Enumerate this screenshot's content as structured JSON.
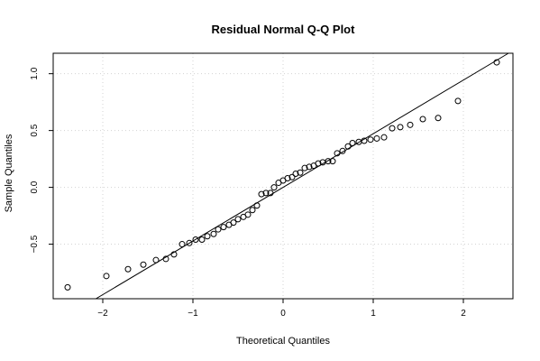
{
  "chart_data": {
    "type": "scatter",
    "title": "Residual Normal Q-Q Plot",
    "xlabel": "Theoretical Quantiles",
    "ylabel": "Sample Quantiles",
    "xlim": [
      -2.55,
      2.55
    ],
    "ylim": [
      -0.98,
      1.18
    ],
    "x_ticks": [
      -2,
      -1,
      0,
      1,
      2
    ],
    "x_tick_labels": [
      "−2",
      "−1",
      "0",
      "1",
      "2"
    ],
    "y_ticks": [
      -0.5,
      0.0,
      0.5,
      1.0
    ],
    "y_tick_labels": [
      "−0.5",
      "0.0",
      "0.5",
      "1.0"
    ],
    "grid": true,
    "reference_line": {
      "intercept": 0.0,
      "slope": 0.472
    },
    "points": [
      {
        "x": -2.39,
        "y": -0.88
      },
      {
        "x": -1.96,
        "y": -0.78
      },
      {
        "x": -1.72,
        "y": -0.72
      },
      {
        "x": -1.55,
        "y": -0.68
      },
      {
        "x": -1.41,
        "y": -0.64
      },
      {
        "x": -1.3,
        "y": -0.63
      },
      {
        "x": -1.21,
        "y": -0.59
      },
      {
        "x": -1.12,
        "y": -0.5
      },
      {
        "x": -1.04,
        "y": -0.49
      },
      {
        "x": -0.97,
        "y": -0.46
      },
      {
        "x": -0.9,
        "y": -0.46
      },
      {
        "x": -0.84,
        "y": -0.43
      },
      {
        "x": -0.77,
        "y": -0.41
      },
      {
        "x": -0.72,
        "y": -0.37
      },
      {
        "x": -0.66,
        "y": -0.35
      },
      {
        "x": -0.6,
        "y": -0.33
      },
      {
        "x": -0.55,
        "y": -0.31
      },
      {
        "x": -0.5,
        "y": -0.28
      },
      {
        "x": -0.44,
        "y": -0.26
      },
      {
        "x": -0.39,
        "y": -0.24
      },
      {
        "x": -0.34,
        "y": -0.2
      },
      {
        "x": -0.29,
        "y": -0.16
      },
      {
        "x": -0.24,
        "y": -0.06
      },
      {
        "x": -0.19,
        "y": -0.05
      },
      {
        "x": -0.14,
        "y": -0.05
      },
      {
        "x": -0.1,
        "y": 0.0
      },
      {
        "x": -0.05,
        "y": 0.04
      },
      {
        "x": 0.0,
        "y": 0.06
      },
      {
        "x": 0.05,
        "y": 0.08
      },
      {
        "x": 0.1,
        "y": 0.09
      },
      {
        "x": 0.14,
        "y": 0.12
      },
      {
        "x": 0.19,
        "y": 0.13
      },
      {
        "x": 0.24,
        "y": 0.17
      },
      {
        "x": 0.29,
        "y": 0.18
      },
      {
        "x": 0.34,
        "y": 0.19
      },
      {
        "x": 0.39,
        "y": 0.21
      },
      {
        "x": 0.44,
        "y": 0.22
      },
      {
        "x": 0.5,
        "y": 0.23
      },
      {
        "x": 0.55,
        "y": 0.23
      },
      {
        "x": 0.6,
        "y": 0.3
      },
      {
        "x": 0.66,
        "y": 0.32
      },
      {
        "x": 0.72,
        "y": 0.36
      },
      {
        "x": 0.77,
        "y": 0.39
      },
      {
        "x": 0.84,
        "y": 0.4
      },
      {
        "x": 0.9,
        "y": 0.41
      },
      {
        "x": 0.97,
        "y": 0.42
      },
      {
        "x": 1.04,
        "y": 0.43
      },
      {
        "x": 1.12,
        "y": 0.44
      },
      {
        "x": 1.21,
        "y": 0.52
      },
      {
        "x": 1.3,
        "y": 0.53
      },
      {
        "x": 1.41,
        "y": 0.55
      },
      {
        "x": 1.55,
        "y": 0.6
      },
      {
        "x": 1.72,
        "y": 0.61
      },
      {
        "x": 1.94,
        "y": 0.76
      },
      {
        "x": 2.37,
        "y": 1.1
      }
    ]
  }
}
